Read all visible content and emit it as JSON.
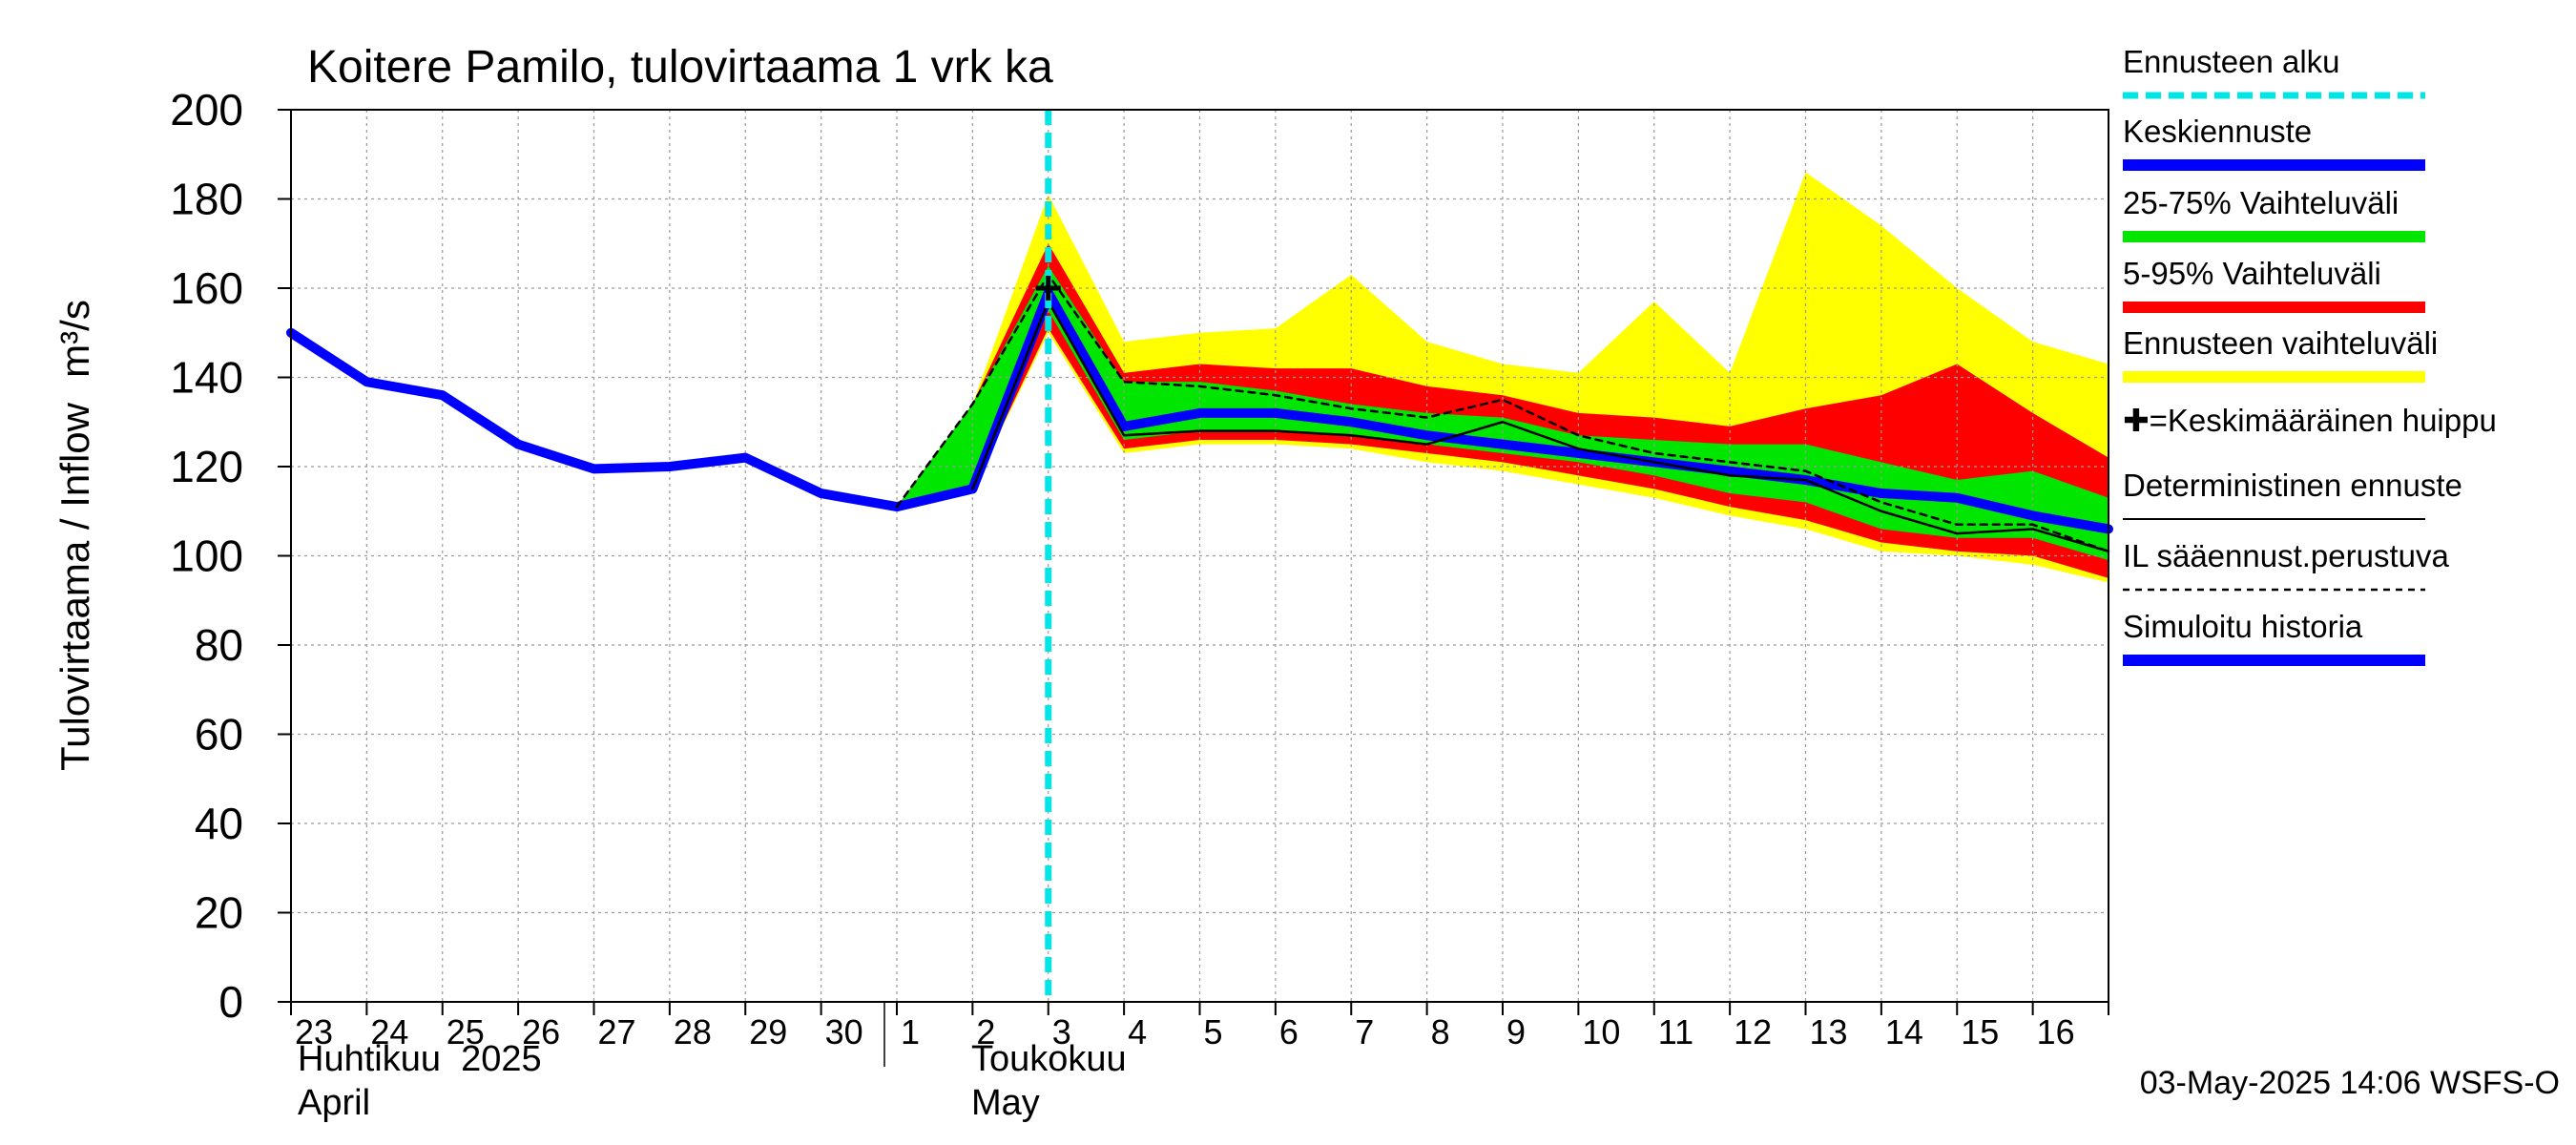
{
  "chart_data": {
    "type": "area",
    "title": "Koitere Pamilo, tulovirtaama 1 vrk ka",
    "ylabel": "Tulovirtaama / Inflow",
    "yunit": "m³/s",
    "ylim": [
      0,
      200
    ],
    "yticks": [
      0,
      20,
      40,
      60,
      80,
      100,
      120,
      140,
      160,
      180,
      200
    ],
    "x_dates": [
      "2025-04-23",
      "2025-04-24",
      "2025-04-25",
      "2025-04-26",
      "2025-04-27",
      "2025-04-28",
      "2025-04-29",
      "2025-04-30",
      "2025-05-01",
      "2025-05-02",
      "2025-05-03",
      "2025-05-04",
      "2025-05-05",
      "2025-05-06",
      "2025-05-07",
      "2025-05-08",
      "2025-05-09",
      "2025-05-10",
      "2025-05-11",
      "2025-05-12",
      "2025-05-13",
      "2025-05-14",
      "2025-05-15",
      "2025-05-16",
      "2025-05-17"
    ],
    "x_tick_labels": [
      "23",
      "24",
      "25",
      "26",
      "27",
      "28",
      "29",
      "30",
      "1",
      "2",
      "3",
      "4",
      "5",
      "6",
      "7",
      "8",
      "9",
      "10",
      "11",
      "12",
      "13",
      "14",
      "15",
      "16"
    ],
    "month_labels": [
      {
        "fi": "Huhtikuu  2025",
        "en": "April"
      },
      {
        "fi": "Toukokuu",
        "en": "May"
      }
    ],
    "forecast_start": "2025-05-03",
    "grid": true,
    "legend_position": "right",
    "colors": {
      "forecast_start": "#00e5e5",
      "mean_forecast": "#0000ff",
      "band_25_75": "#00e600",
      "band_5_95": "#ff0000",
      "band_full": "#ffff00",
      "deterministic": "#000000",
      "weather_based": "#000000",
      "history": "#0000ff"
    },
    "legend": [
      {
        "label": "Ennusteen alku",
        "style": "cyan-dashed"
      },
      {
        "label": "Keskiennuste",
        "style": "blue-thick"
      },
      {
        "label": "25-75% Vaihteluväli",
        "style": "green-thick"
      },
      {
        "label": "5-95% Vaihteluväli",
        "style": "red-thick"
      },
      {
        "label": "Ennusteen vaihteluväli",
        "style": "yellow-thick"
      },
      {
        "label": "✚=Keskimääräinen huippu",
        "style": "none"
      },
      {
        "label": "Deterministinen ennuste",
        "style": "black-thin"
      },
      {
        "label": "IL sääennust.perustuva",
        "style": "black-dashed"
      },
      {
        "label": "Simuloitu historia",
        "style": "blue-thick"
      }
    ],
    "series": {
      "history": {
        "x": [
          "2025-04-23",
          "2025-04-24",
          "2025-04-25",
          "2025-04-26",
          "2025-04-27",
          "2025-04-28",
          "2025-04-29",
          "2025-04-30",
          "2025-05-01",
          "2025-05-02",
          "2025-05-03"
        ],
        "y": [
          150,
          139,
          136,
          125,
          119.5,
          120,
          122,
          114,
          111,
          115,
          158
        ]
      },
      "band_full": {
        "x": [
          "2025-05-01",
          "2025-05-02",
          "2025-05-03",
          "2025-05-04",
          "2025-05-05",
          "2025-05-06",
          "2025-05-07",
          "2025-05-08",
          "2025-05-09",
          "2025-05-10",
          "2025-05-11",
          "2025-05-12",
          "2025-05-13",
          "2025-05-14",
          "2025-05-15",
          "2025-05-16",
          "2025-05-17"
        ],
        "upper": [
          111,
          134,
          181,
          148,
          150,
          151,
          163,
          148,
          143,
          141,
          157,
          141,
          186,
          174,
          160,
          148,
          143
        ],
        "lower": [
          111,
          115,
          150,
          123,
          125,
          125,
          124,
          121,
          119,
          116,
          113,
          109,
          106,
          101,
          100,
          98,
          94
        ]
      },
      "band_5_95": {
        "x": [
          "2025-05-01",
          "2025-05-02",
          "2025-05-03",
          "2025-05-04",
          "2025-05-05",
          "2025-05-06",
          "2025-05-07",
          "2025-05-08",
          "2025-05-09",
          "2025-05-10",
          "2025-05-11",
          "2025-05-12",
          "2025-05-13",
          "2025-05-14",
          "2025-05-15",
          "2025-05-16",
          "2025-05-17"
        ],
        "upper": [
          111,
          134,
          170,
          141,
          143,
          142,
          142,
          138,
          136,
          132,
          131,
          129,
          133,
          136,
          143,
          132,
          122
        ],
        "lower": [
          111,
          115,
          151,
          124,
          126,
          126,
          125,
          123,
          121,
          118,
          115,
          111,
          108,
          103,
          101,
          100,
          95
        ]
      },
      "band_25_75": {
        "x": [
          "2025-05-01",
          "2025-05-02",
          "2025-05-03",
          "2025-05-04",
          "2025-05-05",
          "2025-05-06",
          "2025-05-07",
          "2025-05-08",
          "2025-05-09",
          "2025-05-10",
          "2025-05-11",
          "2025-05-12",
          "2025-05-13",
          "2025-05-14",
          "2025-05-15",
          "2025-05-16",
          "2025-05-17"
        ],
        "upper": [
          111,
          134,
          165,
          139,
          139,
          137,
          134,
          132,
          131,
          127,
          126,
          125,
          125,
          121,
          117,
          119,
          113
        ],
        "lower": [
          111,
          115,
          155,
          126,
          128,
          128,
          127,
          125,
          123,
          121,
          118,
          114,
          112,
          106,
          104,
          104,
          99
        ]
      },
      "mean_forecast": {
        "x": [
          "2025-05-02",
          "2025-05-03",
          "2025-05-04",
          "2025-05-05",
          "2025-05-06",
          "2025-05-07",
          "2025-05-08",
          "2025-05-09",
          "2025-05-10",
          "2025-05-11",
          "2025-05-12",
          "2025-05-13",
          "2025-05-14",
          "2025-05-15",
          "2025-05-16",
          "2025-05-17"
        ],
        "y": [
          115,
          159,
          129,
          132,
          132,
          130,
          127,
          125,
          123,
          121,
          119,
          117,
          114,
          113,
          109,
          106
        ]
      },
      "deterministic": {
        "x": [
          "2025-05-02",
          "2025-05-03",
          "2025-05-04",
          "2025-05-05",
          "2025-05-06",
          "2025-05-07",
          "2025-05-08",
          "2025-05-09",
          "2025-05-10",
          "2025-05-11",
          "2025-05-12",
          "2025-05-13",
          "2025-05-14",
          "2025-05-15",
          "2025-05-16",
          "2025-05-17"
        ],
        "y": [
          115,
          157,
          127,
          128,
          128,
          127,
          125,
          130,
          124,
          121,
          118,
          117,
          110,
          105,
          106,
          101
        ]
      },
      "weather_based": {
        "x": [
          "2025-05-01",
          "2025-05-02",
          "2025-05-03",
          "2025-05-04",
          "2025-05-05",
          "2025-05-06",
          "2025-05-07",
          "2025-05-08",
          "2025-05-09",
          "2025-05-10",
          "2025-05-11",
          "2025-05-12",
          "2025-05-13",
          "2025-05-14",
          "2025-05-15",
          "2025-05-16",
          "2025-05-17"
        ],
        "y": [
          111,
          134,
          163,
          139,
          138,
          136,
          133,
          131,
          135,
          127,
          123,
          121,
          119,
          112,
          107,
          107,
          101
        ]
      },
      "mean_peak": {
        "x": "2025-05-03",
        "y": 160
      }
    },
    "footer_timestamp": "03-May-2025 14:06 WSFS-O"
  }
}
